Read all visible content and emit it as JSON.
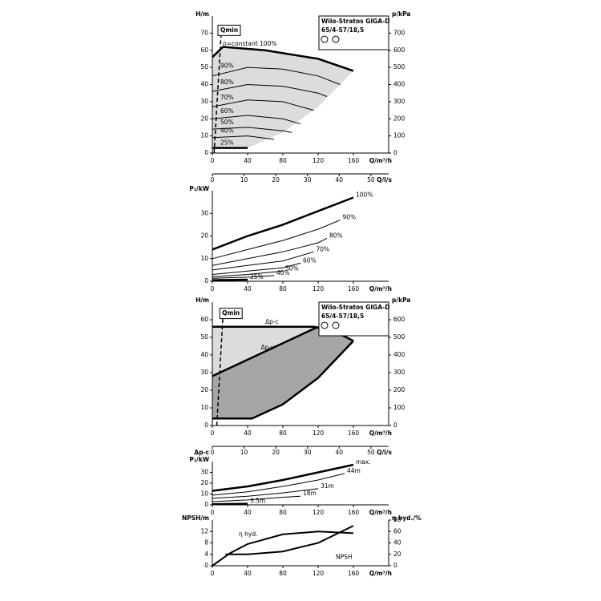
{
  "chart_data": [
    {
      "type": "line",
      "title": "Wilo-Stratos GIGA-D",
      "subtitle": "65/4-57/18,5",
      "annotation": "Qmin",
      "ylabel": "H/m",
      "y2label": "p/kPa",
      "xlabel": "Q/m³/h",
      "x2label": "Q/l/s",
      "xlim": [
        0,
        200
      ],
      "xticks": [
        0,
        40,
        80,
        120,
        160
      ],
      "x2lim": [
        0,
        55.6
      ],
      "x2ticks": [
        0,
        10,
        20,
        30,
        40,
        50
      ],
      "ylim": [
        0,
        80
      ],
      "yticks": [
        0,
        10,
        20,
        30,
        40,
        50,
        60,
        70
      ],
      "y2lim": [
        0,
        800
      ],
      "y2ticks": [
        0,
        100,
        200,
        300,
        400,
        500,
        600,
        700
      ],
      "shade": {
        "color": "#dcdcdc",
        "x": [
          40,
          80,
          120,
          160
        ],
        "values": [
          3,
          12,
          27,
          48
        ]
      },
      "qmin": {
        "x": [
          2,
          10
        ],
        "values": [
          0,
          70
        ]
      },
      "series": [
        {
          "name": "n=constant 100%",
          "color": "#000000",
          "width": 2.5,
          "x": [
            0,
            12,
            60,
            120,
            160
          ],
          "values": [
            56,
            62,
            60,
            55,
            48
          ]
        },
        {
          "name": "90%",
          "color": "#000000",
          "width": 1,
          "x": [
            0,
            40,
            80,
            120,
            145
          ],
          "values": [
            45,
            50,
            49,
            45,
            40
          ]
        },
        {
          "name": "80%",
          "color": "#000000",
          "width": 1,
          "x": [
            0,
            40,
            80,
            120,
            130
          ],
          "values": [
            36,
            40,
            39,
            35,
            33
          ]
        },
        {
          "name": "70%",
          "color": "#000000",
          "width": 1,
          "x": [
            0,
            40,
            80,
            115
          ],
          "values": [
            27,
            31,
            30,
            25
          ]
        },
        {
          "name": "60%",
          "color": "#000000",
          "width": 1,
          "x": [
            0,
            40,
            80,
            100
          ],
          "values": [
            20,
            22,
            20,
            17
          ]
        },
        {
          "name": "50%",
          "color": "#000000",
          "width": 1,
          "x": [
            0,
            40,
            80,
            90
          ],
          "values": [
            14,
            15,
            13,
            12
          ]
        },
        {
          "name": "40%",
          "color": "#000000",
          "width": 1,
          "x": [
            0,
            40,
            70
          ],
          "values": [
            9,
            10,
            8
          ]
        },
        {
          "name": "25%",
          "color": "#000000",
          "width": 2.5,
          "x": [
            0,
            40
          ],
          "values": [
            3,
            3
          ]
        }
      ]
    },
    {
      "type": "line",
      "ylabel": "P₁/kW",
      "xlabel": "Q/m³/h",
      "xlim": [
        0,
        200
      ],
      "xticks": [
        0,
        40,
        80,
        120,
        160
      ],
      "ylim": [
        0,
        40
      ],
      "yticks": [
        0,
        10,
        20,
        30
      ],
      "series": [
        {
          "name": "100%",
          "color": "#000000",
          "width": 2.5,
          "x": [
            0,
            40,
            80,
            120,
            160
          ],
          "values": [
            14,
            20,
            25,
            31,
            37
          ]
        },
        {
          "name": "90%",
          "color": "#000000",
          "width": 1,
          "x": [
            0,
            40,
            80,
            120,
            145
          ],
          "values": [
            10,
            14,
            18,
            23,
            27
          ]
        },
        {
          "name": "80%",
          "color": "#000000",
          "width": 1,
          "x": [
            0,
            40,
            80,
            120,
            130
          ],
          "values": [
            7,
            10,
            13,
            17,
            19
          ]
        },
        {
          "name": "70%",
          "color": "#000000",
          "width": 1,
          "x": [
            0,
            40,
            80,
            115
          ],
          "values": [
            5,
            7,
            9,
            13
          ]
        },
        {
          "name": "60%",
          "color": "#000000",
          "width": 1,
          "x": [
            0,
            40,
            80,
            100
          ],
          "values": [
            3,
            4.5,
            6,
            8
          ]
        },
        {
          "name": "50%",
          "color": "#000000",
          "width": 1,
          "x": [
            0,
            40,
            80
          ],
          "values": [
            2,
            3,
            4.5
          ]
        },
        {
          "name": "40%",
          "color": "#000000",
          "width": 1,
          "x": [
            0,
            40,
            70
          ],
          "values": [
            1.3,
            1.8,
            2.5
          ]
        },
        {
          "name": "25%",
          "color": "#000000",
          "width": 2.5,
          "x": [
            0,
            40
          ],
          "values": [
            0.5,
            0.7
          ]
        }
      ]
    },
    {
      "type": "line",
      "title": "Wilo-Stratos GIGA-D",
      "subtitle": "65/4-57/18,5",
      "annotation": "Qmin",
      "ylabel": "H/m",
      "y2label": "p/kPa",
      "xlabel": "Q/m³/h",
      "x2label": "Q/l/s",
      "xlim": [
        0,
        200
      ],
      "xticks": [
        0,
        40,
        80,
        120,
        160
      ],
      "x2lim": [
        0,
        55.6
      ],
      "x2ticks": [
        0,
        10,
        20,
        30,
        40,
        50
      ],
      "ylim": [
        0,
        70
      ],
      "yticks": [
        0,
        10,
        20,
        30,
        40,
        50,
        60
      ],
      "y2lim": [
        0,
        700
      ],
      "y2ticks": [
        0,
        100,
        200,
        300,
        400,
        500,
        600
      ],
      "qmin": {
        "x": [
          5,
          12
        ],
        "values": [
          0,
          62
        ]
      },
      "series": [
        {
          "name": "Δp-c",
          "color": "#000000",
          "width": 2.5,
          "x": [
            0,
            40,
            80,
            115,
            140,
            160
          ],
          "values": [
            56,
            56,
            56,
            56,
            53,
            48
          ],
          "fill": "#dcdcdc"
        },
        {
          "name": "Δp-v",
          "color": "#000000",
          "width": 2.5,
          "x": [
            0,
            120
          ],
          "values": [
            28,
            56
          ],
          "fill": "#a6a6a6"
        },
        {
          "color": "#000000",
          "width": 2.5,
          "x": [
            0,
            45,
            80,
            120,
            160
          ],
          "values": [
            4,
            4,
            12,
            27,
            48
          ]
        }
      ]
    },
    {
      "type": "line",
      "annotation": "Δp-c",
      "ylabel": "P₁/kW",
      "xlabel": "Q/m³/h",
      "xlim": [
        0,
        200
      ],
      "xticks": [
        0,
        40,
        80,
        120,
        160
      ],
      "ylim": [
        0,
        40
      ],
      "yticks": [
        0,
        10,
        20,
        30
      ],
      "series": [
        {
          "name": "max.",
          "color": "#000000",
          "width": 2.5,
          "x": [
            0,
            40,
            80,
            120,
            160
          ],
          "values": [
            13,
            17,
            23,
            30,
            37
          ]
        },
        {
          "name": "44m",
          "color": "#000000",
          "width": 1,
          "x": [
            0,
            40,
            80,
            120,
            150
          ],
          "values": [
            9,
            12,
            17,
            23,
            29
          ]
        },
        {
          "name": "31m",
          "color": "#000000",
          "width": 1,
          "x": [
            0,
            40,
            80,
            120
          ],
          "values": [
            6,
            8,
            11,
            15
          ]
        },
        {
          "name": "18m",
          "color": "#000000",
          "width": 1,
          "x": [
            0,
            40,
            80,
            100
          ],
          "values": [
            3,
            4.5,
            7,
            8
          ]
        },
        {
          "name": "3.5m",
          "color": "#000000",
          "width": 2.5,
          "x": [
            0,
            40
          ],
          "values": [
            0.5,
            1
          ]
        }
      ]
    },
    {
      "type": "line",
      "ylabel": "NPSH/m",
      "y2label": "η hyd./%",
      "xlabel": "Q/m³/h",
      "xlim": [
        0,
        200
      ],
      "xticks": [
        0,
        40,
        80,
        120,
        160
      ],
      "ylim": [
        0,
        16
      ],
      "yticks": [
        0,
        4,
        8,
        12
      ],
      "y2lim": [
        0,
        80
      ],
      "y2ticks": [
        0,
        20,
        40,
        60,
        80
      ],
      "series": [
        {
          "name": "η hyd.",
          "color": "#000000",
          "width": 2,
          "axis": "y2",
          "x": [
            0,
            20,
            40,
            80,
            120,
            160
          ],
          "values": [
            0,
            22,
            38,
            55,
            60,
            57
          ]
        },
        {
          "name": "NPSH",
          "color": "#000000",
          "width": 2,
          "x": [
            15,
            40,
            80,
            120,
            160
          ],
          "values": [
            4,
            4,
            5,
            8,
            14
          ]
        }
      ]
    }
  ]
}
